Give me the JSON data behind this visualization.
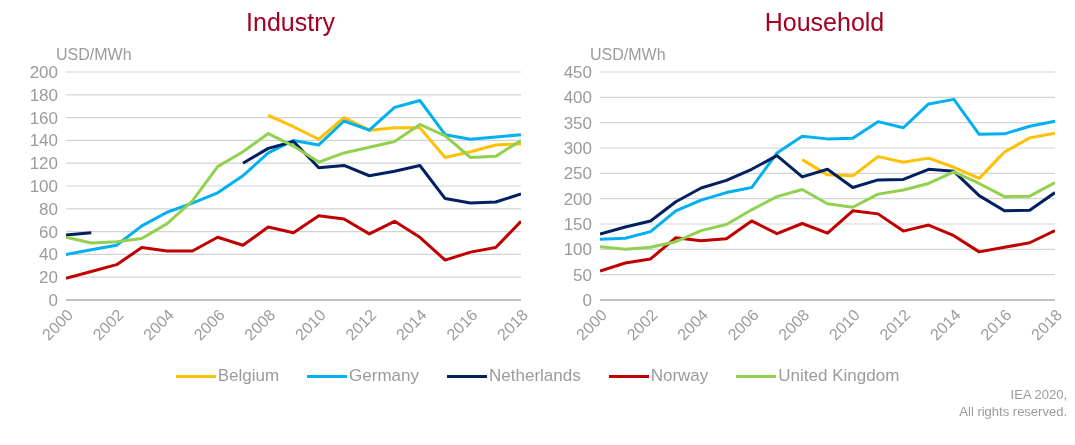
{
  "chart_data": [
    {
      "type": "line",
      "title": "Industry",
      "ylabel": "USD/MWh",
      "x": [
        2000,
        2001,
        2002,
        2003,
        2004,
        2005,
        2006,
        2007,
        2008,
        2009,
        2010,
        2011,
        2012,
        2013,
        2014,
        2015,
        2016,
        2017,
        2018
      ],
      "xlim": [
        2000,
        2018
      ],
      "xticks": [
        2000,
        2002,
        2004,
        2006,
        2008,
        2010,
        2012,
        2014,
        2016,
        2018
      ],
      "ylim": [
        0,
        200
      ],
      "yticks": [
        0,
        20,
        40,
        60,
        80,
        100,
        120,
        140,
        160,
        180,
        200
      ],
      "grid": "y",
      "legend": "bottom",
      "series": [
        {
          "name": "Belgium",
          "color": "#ffc000",
          "values": [
            null,
            null,
            null,
            null,
            null,
            null,
            null,
            null,
            162,
            152,
            141,
            160,
            149,
            151,
            151,
            125,
            130,
            136,
            137
          ]
        },
        {
          "name": "Germany",
          "color": "#00b0f0",
          "values": [
            40,
            44,
            48,
            65,
            77,
            85,
            94,
            109,
            129,
            140,
            136,
            157,
            149,
            169,
            175,
            145,
            141,
            143,
            145
          ]
        },
        {
          "name": "Netherlands",
          "color": "#002060",
          "values": [
            57,
            59,
            null,
            null,
            null,
            null,
            null,
            120,
            133,
            139,
            116,
            118,
            109,
            113,
            118,
            89,
            85,
            86,
            93
          ]
        },
        {
          "name": "Norway",
          "color": "#c00000",
          "values": [
            19,
            25,
            31,
            46,
            43,
            43,
            55,
            48,
            64,
            59,
            74,
            71,
            58,
            69,
            55,
            35,
            42,
            46,
            69
          ]
        },
        {
          "name": "United Kingdom",
          "color": "#92d050",
          "values": [
            55,
            50,
            51,
            54,
            67,
            87,
            117,
            130,
            146,
            135,
            121,
            129,
            134,
            139,
            154,
            144,
            125,
            126,
            140
          ]
        }
      ]
    },
    {
      "type": "line",
      "title": "Household",
      "ylabel": "USD/MWh",
      "x": [
        2000,
        2001,
        2002,
        2003,
        2004,
        2005,
        2006,
        2007,
        2008,
        2009,
        2010,
        2011,
        2012,
        2013,
        2014,
        2015,
        2016,
        2017,
        2018
      ],
      "xlim": [
        2000,
        2018
      ],
      "xticks": [
        2000,
        2002,
        2004,
        2006,
        2008,
        2010,
        2012,
        2014,
        2016,
        2018
      ],
      "ylim": [
        0,
        450
      ],
      "yticks": [
        0,
        50,
        100,
        150,
        200,
        250,
        300,
        350,
        400,
        450
      ],
      "grid": "y",
      "annotations": [
        "IEA 2020,",
        "All rights reserved."
      ],
      "series": [
        {
          "name": "Belgium",
          "color": "#ffc000",
          "values": [
            null,
            null,
            null,
            null,
            null,
            null,
            null,
            null,
            277,
            247,
            245,
            283,
            272,
            280,
            262,
            240,
            292,
            320,
            329
          ]
        },
        {
          "name": "Germany",
          "color": "#00b0f0",
          "values": [
            120,
            122,
            135,
            176,
            197,
            212,
            222,
            290,
            323,
            318,
            319,
            352,
            340,
            387,
            396,
            327,
            328,
            343,
            353
          ]
        },
        {
          "name": "Netherlands",
          "color": "#002060",
          "values": [
            130,
            144,
            156,
            194,
            221,
            236,
            258,
            285,
            243,
            258,
            222,
            237,
            238,
            258,
            254,
            206,
            176,
            177,
            212
          ]
        },
        {
          "name": "Norway",
          "color": "#c00000",
          "values": [
            57,
            73,
            81,
            123,
            117,
            121,
            156,
            131,
            151,
            132,
            176,
            170,
            136,
            148,
            127,
            95,
            104,
            113,
            137
          ]
        },
        {
          "name": "United Kingdom",
          "color": "#92d050",
          "values": [
            105,
            100,
            104,
            115,
            137,
            149,
            178,
            204,
            218,
            190,
            183,
            209,
            217,
            230,
            253,
            230,
            204,
            205,
            232
          ]
        }
      ]
    }
  ]
}
